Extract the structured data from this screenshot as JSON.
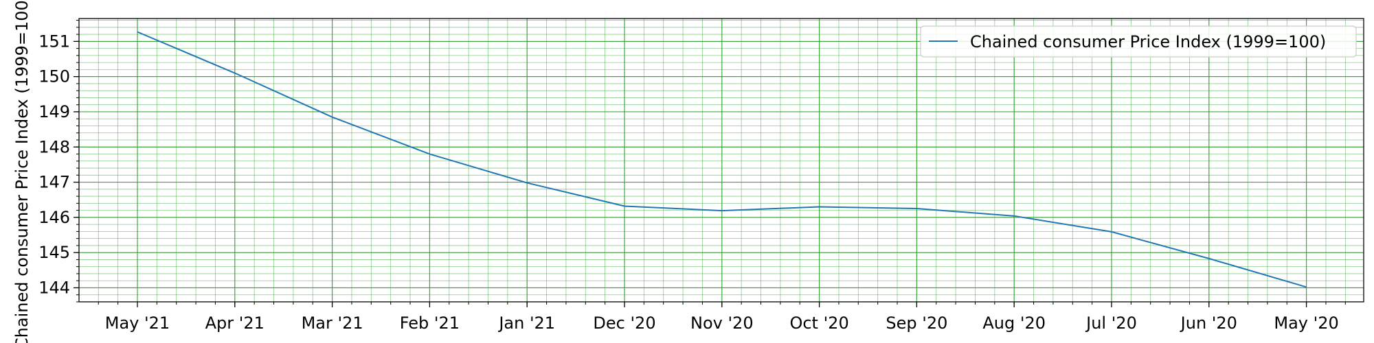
{
  "chart_data": {
    "type": "line",
    "title": "",
    "xlabel": "",
    "ylabel": "Chained consumer Price Index (1999=100)",
    "categories": [
      "May '21",
      "Apr '21",
      "Mar '21",
      "Feb '21",
      "Jan '21",
      "Dec '20",
      "Nov '20",
      "Oct '20",
      "Sep '20",
      "Aug '20",
      "Jul '20",
      "Jun '20",
      "May '20"
    ],
    "series": [
      {
        "name": "Chained consumer Price Index (1999=100)",
        "color": "#1f77b4",
        "values": [
          151.27,
          150.1,
          148.85,
          147.8,
          146.98,
          146.32,
          146.19,
          146.3,
          146.25,
          146.04,
          145.59,
          144.83,
          144.02
        ]
      }
    ],
    "yticks": [
      144,
      145,
      146,
      147,
      148,
      149,
      150,
      151
    ],
    "ylim": [
      143.6,
      151.65
    ],
    "grid": true,
    "grid_color": "#2ca02c",
    "legend": "top-right"
  }
}
